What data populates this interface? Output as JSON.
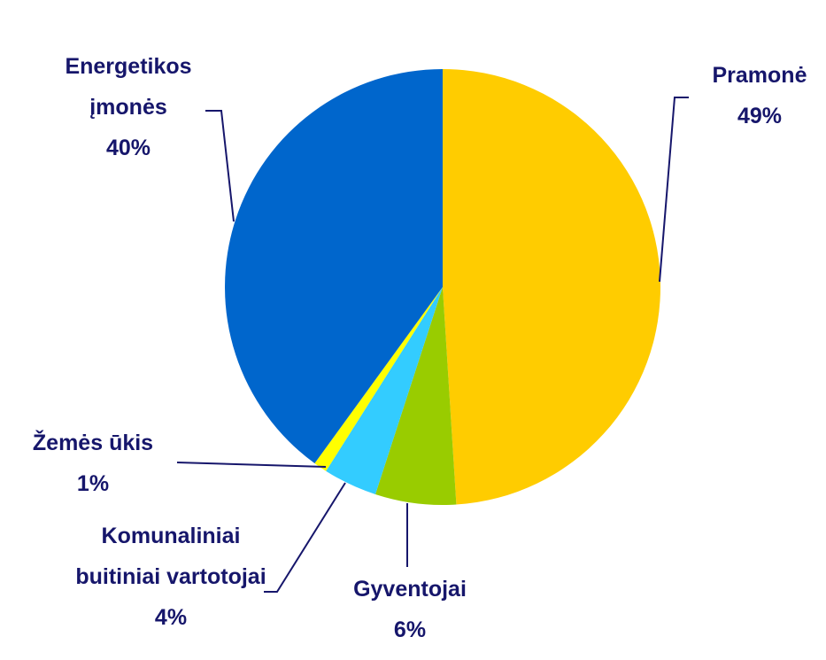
{
  "chart_data": {
    "type": "pie",
    "categories": [
      "Pramonė",
      "Gyventojai",
      "Komunaliniai buitiniai vartotojai",
      "Žemės ūkis",
      "Energetikos įmonės"
    ],
    "values": [
      49,
      6,
      4,
      1,
      40
    ],
    "value_labels": [
      "49%",
      "6%",
      "4%",
      "1%",
      "40%"
    ],
    "colors": [
      "#FFCC00",
      "#99CC00",
      "#33CCFF",
      "#FFFF00",
      "#0066CC"
    ]
  }
}
